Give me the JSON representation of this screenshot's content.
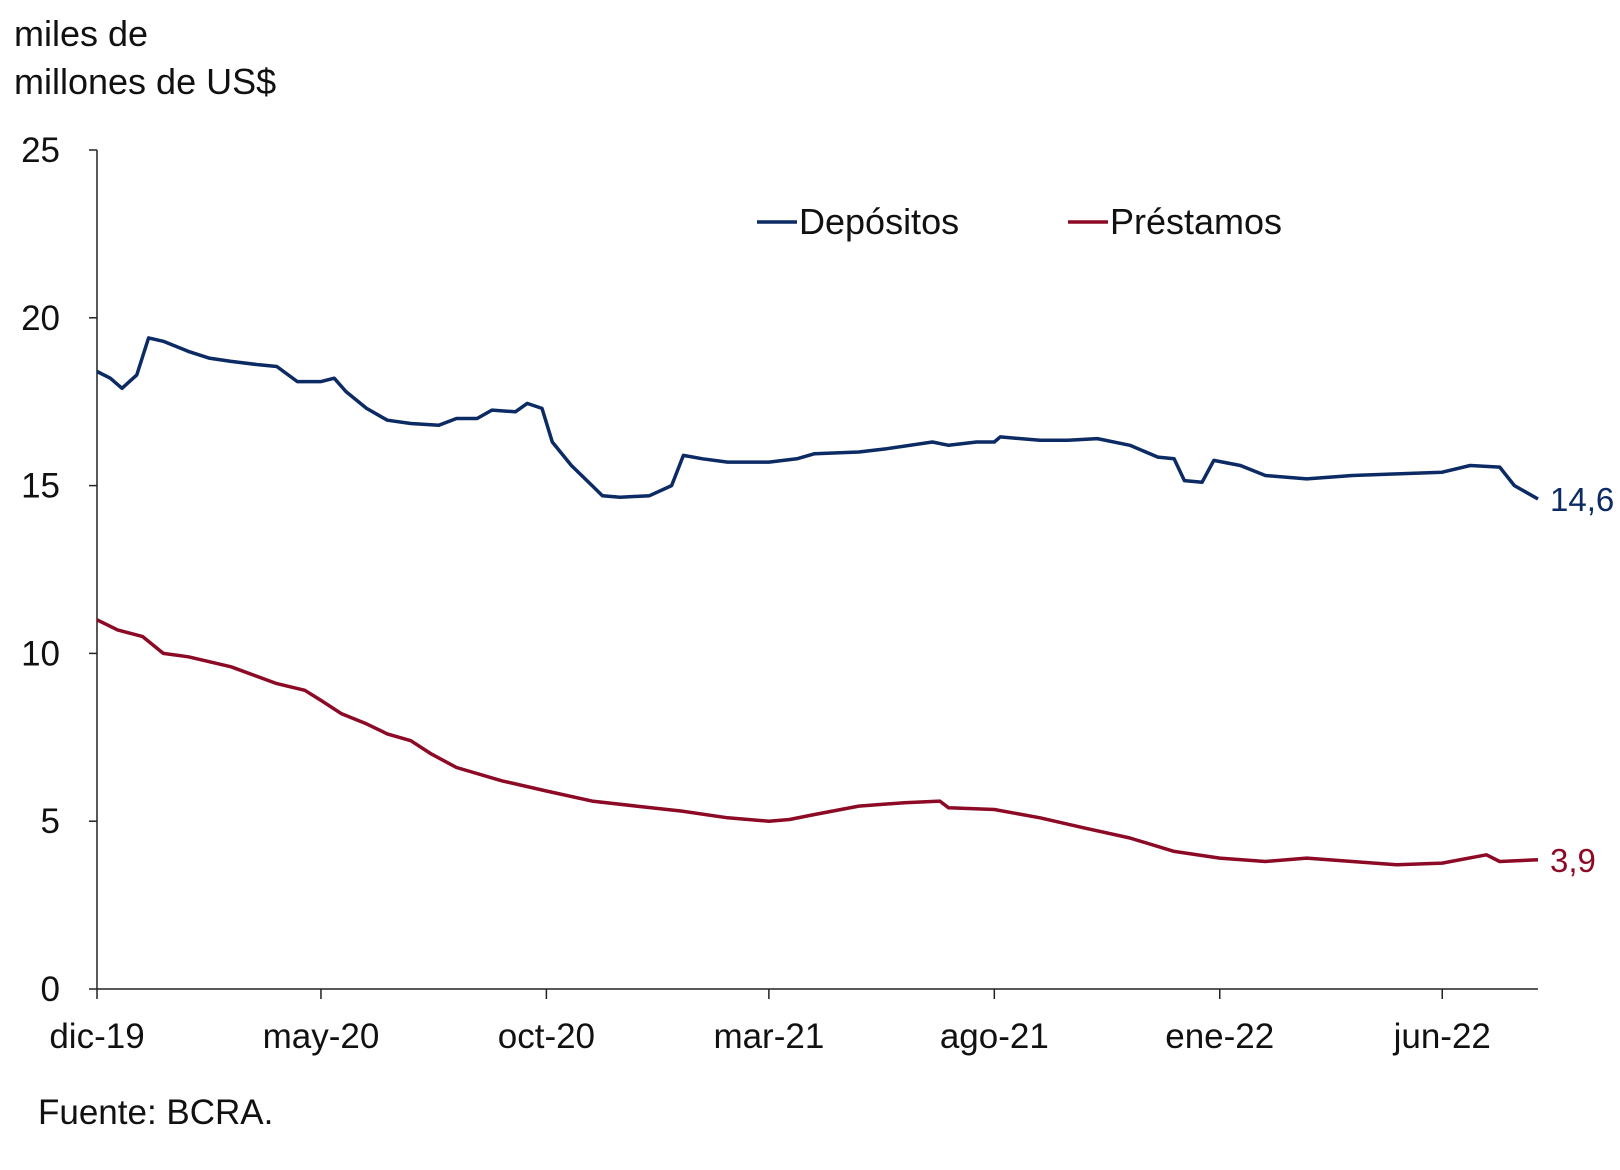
{
  "chart_data": {
    "type": "line",
    "title": "",
    "ylabel_line1": "miles de",
    "ylabel_line2": "millones de US$",
    "xlabel": "",
    "ylim": [
      0,
      25
    ],
    "yticks": [
      "0",
      "5",
      "10",
      "15",
      "20",
      "25"
    ],
    "xlim": [
      "2019-12-01",
      "2022-08-05"
    ],
    "xticks": [
      {
        "label": "dic-19",
        "date": "2019-12-01"
      },
      {
        "label": "may-20",
        "date": "2020-05-01"
      },
      {
        "label": "oct-20",
        "date": "2020-10-01"
      },
      {
        "label": "mar-21",
        "date": "2021-03-01"
      },
      {
        "label": "ago-21",
        "date": "2021-08-01"
      },
      {
        "label": "ene-22",
        "date": "2022-01-01"
      },
      {
        "label": "jun-22",
        "date": "2022-06-01"
      }
    ],
    "grid": false,
    "legend": "top-center",
    "series": [
      {
        "name": "Depósitos",
        "color": "#0c2a63",
        "end_label": "14,6",
        "points": [
          [
            "2019-12-01",
            18.4
          ],
          [
            "2019-12-10",
            18.2
          ],
          [
            "2019-12-18",
            17.9
          ],
          [
            "2019-12-28",
            18.3
          ],
          [
            "2020-01-05",
            19.4
          ],
          [
            "2020-01-15",
            19.3
          ],
          [
            "2020-02-01",
            19.0
          ],
          [
            "2020-02-15",
            18.8
          ],
          [
            "2020-03-01",
            18.7
          ],
          [
            "2020-03-20",
            18.6
          ],
          [
            "2020-04-01",
            18.55
          ],
          [
            "2020-04-15",
            18.1
          ],
          [
            "2020-05-01",
            18.1
          ],
          [
            "2020-05-10",
            18.2
          ],
          [
            "2020-05-18",
            17.8
          ],
          [
            "2020-06-01",
            17.3
          ],
          [
            "2020-06-15",
            16.95
          ],
          [
            "2020-07-01",
            16.85
          ],
          [
            "2020-07-20",
            16.8
          ],
          [
            "2020-08-01",
            17.0
          ],
          [
            "2020-08-15",
            17.0
          ],
          [
            "2020-08-25",
            17.25
          ],
          [
            "2020-09-10",
            17.2
          ],
          [
            "2020-09-18",
            17.45
          ],
          [
            "2020-09-28",
            17.3
          ],
          [
            "2020-10-05",
            16.3
          ],
          [
            "2020-10-18",
            15.6
          ],
          [
            "2020-11-01",
            15.0
          ],
          [
            "2020-11-08",
            14.7
          ],
          [
            "2020-11-20",
            14.65
          ],
          [
            "2020-12-10",
            14.7
          ],
          [
            "2020-12-25",
            15.0
          ],
          [
            "2021-01-02",
            15.9
          ],
          [
            "2021-01-15",
            15.8
          ],
          [
            "2021-02-01",
            15.7
          ],
          [
            "2021-03-01",
            15.7
          ],
          [
            "2021-03-20",
            15.8
          ],
          [
            "2021-04-01",
            15.95
          ],
          [
            "2021-05-01",
            16.0
          ],
          [
            "2021-05-20",
            16.1
          ],
          [
            "2021-06-20",
            16.3
          ],
          [
            "2021-07-01",
            16.2
          ],
          [
            "2021-07-20",
            16.3
          ],
          [
            "2021-08-01",
            16.3
          ],
          [
            "2021-08-05",
            16.45
          ],
          [
            "2021-09-01",
            16.35
          ],
          [
            "2021-09-20",
            16.35
          ],
          [
            "2021-10-10",
            16.4
          ],
          [
            "2021-11-01",
            16.2
          ],
          [
            "2021-11-20",
            15.85
          ],
          [
            "2021-12-01",
            15.8
          ],
          [
            "2021-12-08",
            15.15
          ],
          [
            "2021-12-20",
            15.1
          ],
          [
            "2021-12-28",
            15.75
          ],
          [
            "2022-01-15",
            15.6
          ],
          [
            "2022-02-01",
            15.3
          ],
          [
            "2022-03-01",
            15.2
          ],
          [
            "2022-04-01",
            15.3
          ],
          [
            "2022-05-01",
            15.35
          ],
          [
            "2022-06-01",
            15.4
          ],
          [
            "2022-06-20",
            15.6
          ],
          [
            "2022-07-10",
            15.55
          ],
          [
            "2022-07-20",
            15.0
          ],
          [
            "2022-08-05",
            14.6
          ]
        ]
      },
      {
        "name": "Préstamos",
        "color": "#8c0a25",
        "end_label": "3,9",
        "points": [
          [
            "2019-12-01",
            11.0
          ],
          [
            "2019-12-15",
            10.7
          ],
          [
            "2020-01-01",
            10.5
          ],
          [
            "2020-01-15",
            10.0
          ],
          [
            "2020-02-01",
            9.9
          ],
          [
            "2020-03-01",
            9.6
          ],
          [
            "2020-04-01",
            9.1
          ],
          [
            "2020-04-20",
            8.9
          ],
          [
            "2020-05-01",
            8.6
          ],
          [
            "2020-05-15",
            8.2
          ],
          [
            "2020-06-01",
            7.9
          ],
          [
            "2020-06-15",
            7.6
          ],
          [
            "2020-07-01",
            7.4
          ],
          [
            "2020-07-15",
            7.0
          ],
          [
            "2020-08-01",
            6.6
          ],
          [
            "2020-09-01",
            6.2
          ],
          [
            "2020-10-01",
            5.9
          ],
          [
            "2020-11-01",
            5.6
          ],
          [
            "2020-12-01",
            5.45
          ],
          [
            "2021-01-01",
            5.3
          ],
          [
            "2021-02-01",
            5.1
          ],
          [
            "2021-03-01",
            5.0
          ],
          [
            "2021-03-15",
            5.05
          ],
          [
            "2021-04-01",
            5.2
          ],
          [
            "2021-05-01",
            5.45
          ],
          [
            "2021-06-01",
            5.55
          ],
          [
            "2021-06-25",
            5.6
          ],
          [
            "2021-07-01",
            5.4
          ],
          [
            "2021-08-01",
            5.35
          ],
          [
            "2021-09-01",
            5.1
          ],
          [
            "2021-10-01",
            4.8
          ],
          [
            "2021-11-01",
            4.5
          ],
          [
            "2021-12-01",
            4.1
          ],
          [
            "2022-01-01",
            3.9
          ],
          [
            "2022-02-01",
            3.8
          ],
          [
            "2022-03-01",
            3.9
          ],
          [
            "2022-04-01",
            3.8
          ],
          [
            "2022-05-01",
            3.7
          ],
          [
            "2022-06-01",
            3.75
          ],
          [
            "2022-07-01",
            4.0
          ],
          [
            "2022-07-10",
            3.8
          ],
          [
            "2022-08-05",
            3.85
          ]
        ]
      }
    ]
  },
  "source": "Fuente: BCRA."
}
